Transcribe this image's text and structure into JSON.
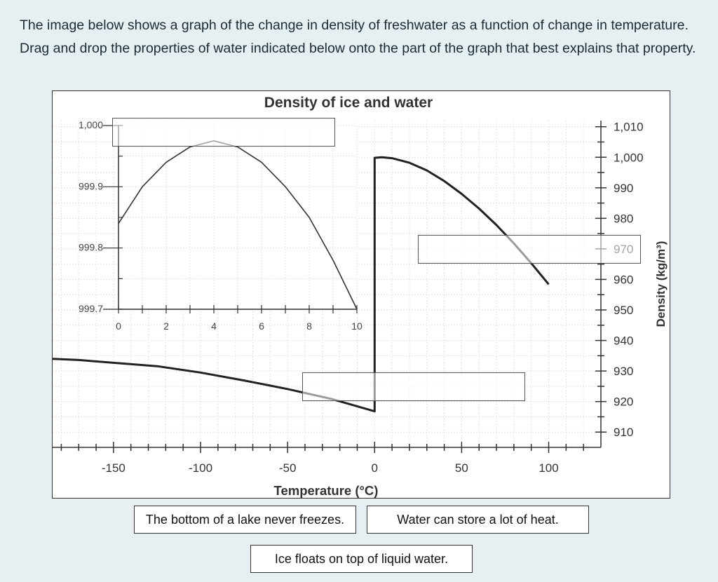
{
  "question": {
    "instructions": "The image below shows a graph of the change in density of freshwater as a function of change in temperature.  Drag and drop the properties of water indicated below onto the part of the graph that best explains that property."
  },
  "answer_options": [
    {
      "label": "The bottom of a lake never freezes."
    },
    {
      "label": "Water can store a lot of heat."
    },
    {
      "label": "Ice floats on top of liquid water."
    }
  ],
  "chart_data": [
    {
      "type": "line",
      "title": "Density of ice and water",
      "xlabel": "Temperature (°C)",
      "ylabel": "Density (kg/m³)",
      "xlim": [
        -185,
        130
      ],
      "ylim": [
        905,
        1012
      ],
      "x_ticks": [
        -150,
        -100,
        -50,
        0,
        50,
        100
      ],
      "y_ticks": [
        910,
        920,
        930,
        940,
        950,
        960,
        970,
        980,
        990,
        1000,
        1010
      ],
      "y_tick_labels": [
        "910",
        "920",
        "930",
        "940",
        "950",
        "960",
        "970",
        "980",
        "990",
        "1,000",
        "1,010"
      ],
      "y_axis_side": "right",
      "grid": true,
      "series": [
        {
          "points": [
            [
              -185,
              934
            ],
            [
              -170,
              933.6
            ],
            [
              -150,
              932.7
            ],
            [
              -125,
              931.6
            ],
            [
              -100,
              929.5
            ],
            [
              -75,
              926.9
            ],
            [
              -50,
              924.1
            ],
            [
              -25,
              920.9
            ],
            [
              0,
              916.8
            ],
            [
              0,
              999.8
            ],
            [
              4,
              1000
            ],
            [
              10,
              999.7
            ],
            [
              20,
              998.2
            ],
            [
              30,
              995.7
            ],
            [
              40,
              992.2
            ],
            [
              50,
              988
            ],
            [
              60,
              983.2
            ],
            [
              70,
              977.8
            ],
            [
              80,
              971.8
            ],
            [
              90,
              965.3
            ],
            [
              100,
              958.4
            ]
          ]
        }
      ]
    },
    {
      "type": "line",
      "inset": true,
      "xlim": [
        0,
        10
      ],
      "ylim": [
        999.7,
        1000.0
      ],
      "x_ticks": [
        0,
        2,
        4,
        6,
        8,
        10
      ],
      "y_ticks": [
        999.7,
        999.8,
        999.9,
        1000
      ],
      "y_tick_labels": [
        "999.7",
        "999.8",
        "999.9",
        "1,000"
      ],
      "series": [
        {
          "points": [
            [
              0,
              999.84
            ],
            [
              1,
              999.9
            ],
            [
              2,
              999.94
            ],
            [
              3,
              999.965
            ],
            [
              4,
              999.975
            ],
            [
              5,
              999.965
            ],
            [
              6,
              999.94
            ],
            [
              7,
              999.9
            ],
            [
              8,
              999.85
            ],
            [
              9,
              999.78
            ],
            [
              10,
              999.7
            ]
          ]
        }
      ]
    }
  ]
}
